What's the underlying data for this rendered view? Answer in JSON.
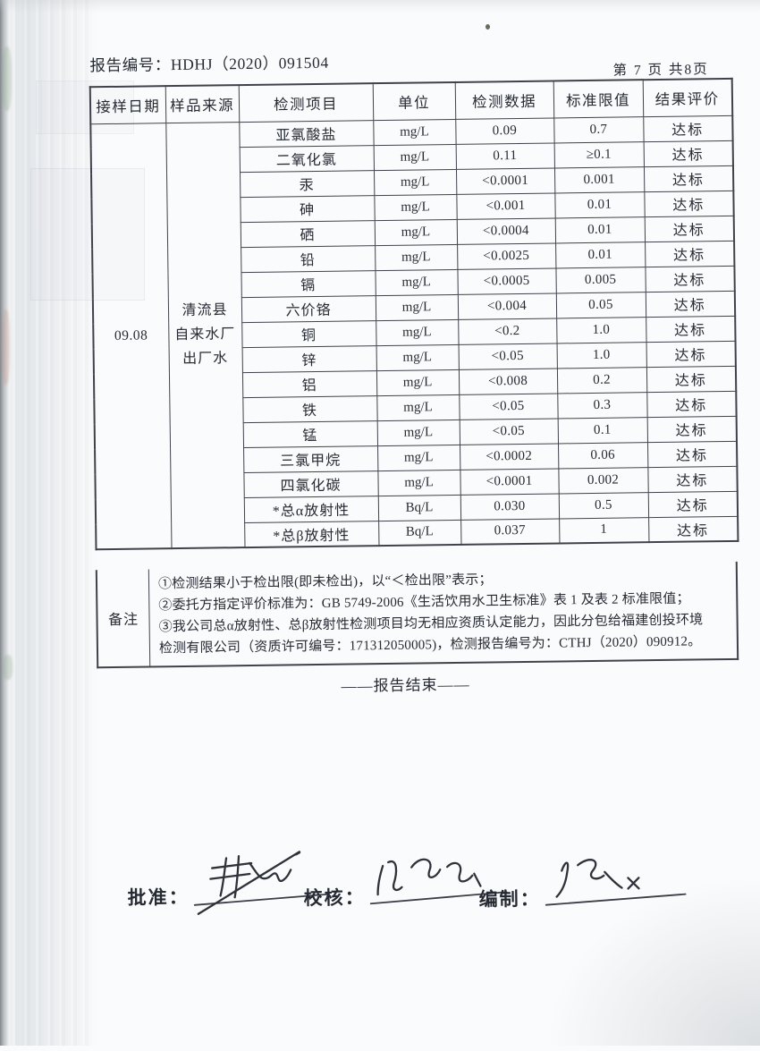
{
  "page": {
    "report_no": "报告编号：HDHJ（2020）091504",
    "page_no": "第 7 页 共8页",
    "end_text": "——报告结束——"
  },
  "table": {
    "headers": [
      "接样日期",
      "样品来源",
      "检测项目",
      "单位",
      "检测数据",
      "标准限值",
      "结果评价"
    ],
    "sample_date": "09.08",
    "sample_source_lines": [
      "清流县",
      "自来水厂",
      "出厂水"
    ],
    "rows": [
      {
        "item": "亚氯酸盐",
        "unit": "mg/L",
        "value": "0.09",
        "limit": "0.7",
        "result": "达标"
      },
      {
        "item": "二氧化氯",
        "unit": "mg/L",
        "value": "0.11",
        "limit": "≥0.1",
        "result": "达标"
      },
      {
        "item": "汞",
        "unit": "mg/L",
        "value": "<0.0001",
        "limit": "0.001",
        "result": "达标"
      },
      {
        "item": "砷",
        "unit": "mg/L",
        "value": "<0.001",
        "limit": "0.01",
        "result": "达标"
      },
      {
        "item": "硒",
        "unit": "mg/L",
        "value": "<0.0004",
        "limit": "0.01",
        "result": "达标"
      },
      {
        "item": "铅",
        "unit": "mg/L",
        "value": "<0.0025",
        "limit": "0.01",
        "result": "达标"
      },
      {
        "item": "镉",
        "unit": "mg/L",
        "value": "<0.0005",
        "limit": "0.005",
        "result": "达标"
      },
      {
        "item": "六价铬",
        "unit": "mg/L",
        "value": "<0.004",
        "limit": "0.05",
        "result": "达标"
      },
      {
        "item": "铜",
        "unit": "mg/L",
        "value": "<0.2",
        "limit": "1.0",
        "result": "达标"
      },
      {
        "item": "锌",
        "unit": "mg/L",
        "value": "<0.05",
        "limit": "1.0",
        "result": "达标"
      },
      {
        "item": "铝",
        "unit": "mg/L",
        "value": "<0.008",
        "limit": "0.2",
        "result": "达标"
      },
      {
        "item": "铁",
        "unit": "mg/L",
        "value": "<0.05",
        "limit": "0.3",
        "result": "达标"
      },
      {
        "item": "锰",
        "unit": "mg/L",
        "value": "<0.05",
        "limit": "0.1",
        "result": "达标"
      },
      {
        "item": "三氯甲烷",
        "unit": "mg/L",
        "value": "<0.0002",
        "limit": "0.06",
        "result": "达标"
      },
      {
        "item": "四氯化碳",
        "unit": "mg/L",
        "value": "<0.0001",
        "limit": "0.002",
        "result": "达标"
      },
      {
        "item": "*总α放射性",
        "unit": "Bq/L",
        "value": "0.030",
        "limit": "0.5",
        "result": "达标"
      },
      {
        "item": "*总β放射性",
        "unit": "Bq/L",
        "value": "0.037",
        "limit": "1",
        "result": "达标"
      }
    ]
  },
  "remarks": {
    "label": "备注",
    "lines": [
      "①检测结果小于检出限(即未检出)，以“＜检出限”表示；",
      "②委托方指定评价标准为：GB 5749-2006《生活饮用水卫生标准》表 1 及表 2 标准限值；",
      "③我公司总α放射性、总β放射性检测项目均无相应资质认定能力，因此分包给福建创投环境",
      "检测有限公司（资质许可编号：171312050005)，检测报告编号为：CTHJ（2020）090912。"
    ]
  },
  "signatures": {
    "approve_label": "批准：",
    "check_label": "校核：",
    "prepare_label": "编制："
  }
}
